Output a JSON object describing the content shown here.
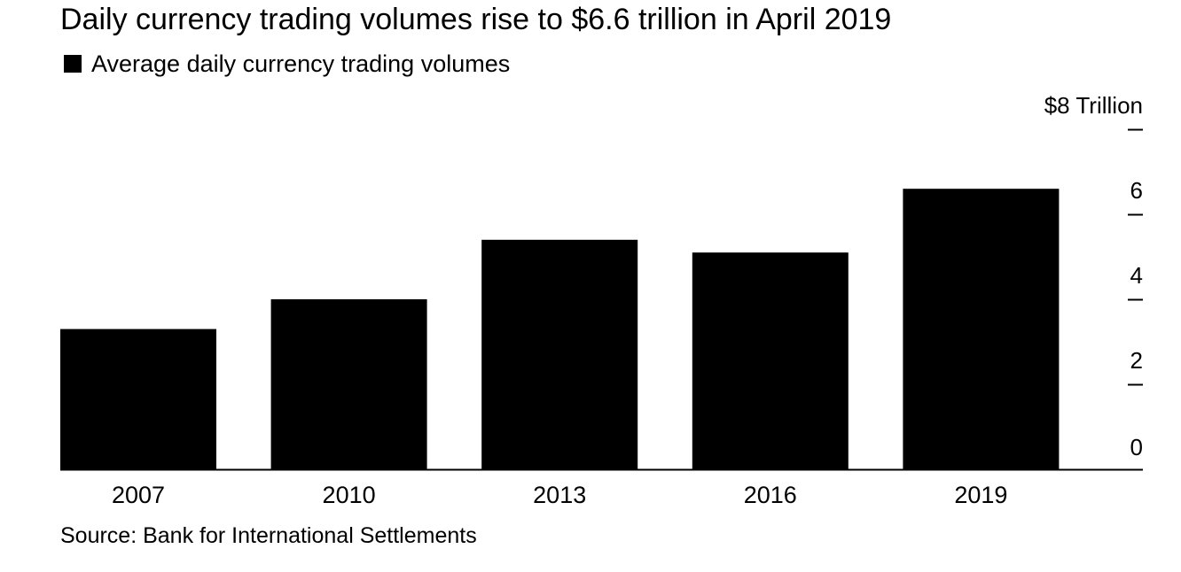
{
  "title": "Daily currency trading volumes rise to $6.6 trillion in April 2019",
  "legend": {
    "label": "Average daily currency trading volumes"
  },
  "source": "Source: Bank for International Settlements",
  "colors": {
    "bar": "#000000",
    "axis": "#000000",
    "background": "#ffffff"
  },
  "chart_data": {
    "type": "bar",
    "title": "Daily currency trading volumes rise to $6.6 trillion in April 2019",
    "categories": [
      "2007",
      "2010",
      "2013",
      "2016",
      "2019"
    ],
    "series": [
      {
        "name": "Average daily currency trading volumes",
        "values": [
          3.3,
          4.0,
          5.4,
          5.1,
          6.6
        ]
      }
    ],
    "ylim": [
      0,
      8
    ],
    "y_ticks": [
      0,
      2,
      4,
      6,
      8
    ],
    "y_tick_labels": [
      "0",
      "2",
      "4",
      "6",
      "$8 Trillion"
    ],
    "y_axis_side": "right",
    "grid": false,
    "legend_position": "top-left",
    "xlabel": "",
    "ylabel": ""
  }
}
